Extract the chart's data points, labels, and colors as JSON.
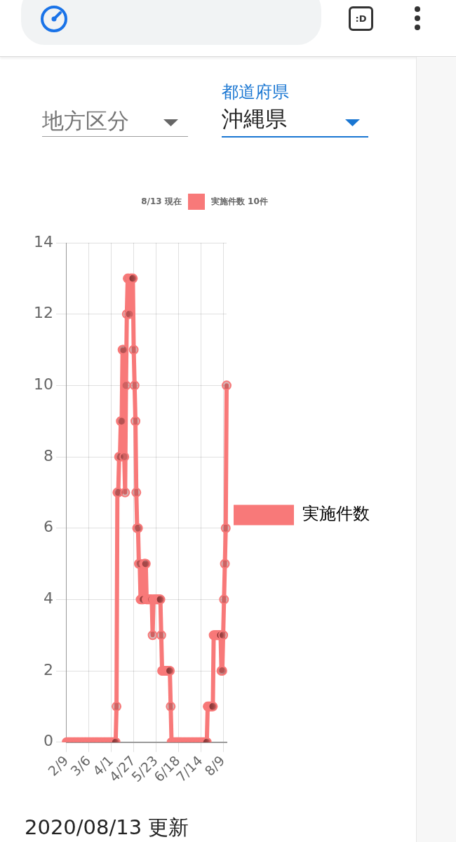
{
  "chart_data": {
    "type": "line",
    "title": "8/13 現在",
    "subtitle": "実施件数 10件",
    "categories": [
      "2/9",
      null,
      null,
      null,
      null,
      null,
      null,
      null,
      null,
      null,
      null,
      null,
      null,
      null,
      null,
      null,
      null,
      null,
      null,
      null,
      null,
      null,
      null,
      null,
      null,
      null,
      "3/6",
      null,
      null,
      null,
      null,
      null,
      null,
      null,
      null,
      null,
      null,
      null,
      null,
      null,
      null,
      null,
      null,
      null,
      null,
      null,
      null,
      null,
      null,
      null,
      null,
      null,
      "4/1",
      null,
      null,
      null,
      null,
      null,
      null,
      null,
      null,
      null,
      null,
      null,
      null,
      null,
      null,
      null,
      null,
      null,
      null,
      null,
      null,
      null,
      null,
      null,
      null,
      null,
      "4/27",
      null,
      null,
      null,
      null,
      null,
      null,
      null,
      null,
      null,
      null,
      null,
      null,
      null,
      null,
      null,
      null,
      null,
      null,
      null,
      null,
      null,
      null,
      null,
      null,
      null,
      "5/23",
      null,
      null,
      null,
      null,
      null,
      null,
      null,
      null,
      null,
      null,
      null,
      null,
      null,
      null,
      null,
      null,
      null,
      null,
      null,
      null,
      null,
      null,
      null,
      null,
      null,
      "6/18",
      null,
      null,
      null,
      null,
      null,
      null,
      null,
      null,
      null,
      null,
      null,
      null,
      null,
      null,
      null,
      null,
      null,
      null,
      null,
      null,
      null,
      null,
      null,
      null,
      null,
      "7/14",
      null,
      null,
      null,
      null,
      null,
      null,
      null,
      null,
      null,
      null,
      null,
      null,
      null,
      null,
      null,
      null,
      null,
      null,
      null,
      null,
      null,
      null,
      null,
      null,
      null,
      "8/9",
      null,
      null,
      null,
      null
    ],
    "series": [
      {
        "name": "実施件数",
        "color": "#f87979",
        "values": [
          0,
          0,
          0,
          0,
          0,
          0,
          0,
          0,
          0,
          0,
          0,
          0,
          0,
          0,
          0,
          0,
          0,
          0,
          0,
          0,
          0,
          0,
          0,
          0,
          0,
          0,
          0,
          0,
          0,
          0,
          0,
          0,
          0,
          0,
          0,
          0,
          0,
          0,
          0,
          0,
          0,
          0,
          0,
          0,
          0,
          0,
          0,
          0,
          0,
          0,
          0,
          0,
          0,
          0,
          0,
          0,
          0,
          0,
          1,
          7,
          7,
          8,
          8,
          9,
          9,
          11,
          11,
          8,
          7,
          10,
          12,
          13,
          13,
          12,
          13,
          13,
          13,
          13,
          11,
          10,
          9,
          7,
          6,
          6,
          5,
          5,
          4,
          4,
          4,
          4,
          5,
          5,
          5,
          4,
          4,
          4,
          4,
          4,
          4,
          4,
          3,
          4,
          4,
          4,
          4,
          4,
          4,
          4,
          4,
          4,
          3,
          2,
          2,
          2,
          2,
          2,
          2,
          2,
          2,
          2,
          2,
          1,
          0,
          0,
          0,
          0,
          0,
          0,
          0,
          0,
          0,
          0,
          0,
          0,
          0,
          0,
          0,
          0,
          0,
          0,
          0,
          0,
          0,
          0,
          0,
          0,
          0,
          0,
          0,
          0,
          0,
          0,
          0,
          0,
          0,
          0,
          0,
          0,
          0,
          0,
          0,
          0,
          0,
          0,
          1,
          1,
          1,
          1,
          1,
          1,
          1,
          3,
          3,
          3,
          3,
          3,
          3,
          3,
          3,
          3,
          2,
          2,
          3,
          4,
          5,
          6,
          10
        ]
      }
    ],
    "ylim": [
      0,
      14
    ],
    "yticks": [
      0,
      2,
      4,
      6,
      8,
      10,
      12,
      14
    ],
    "grid": true,
    "legend": "right",
    "marker": "circle",
    "line_style": "solid",
    "annotations": [
      ":D",
      "地方区分",
      "都道府県",
      "沖縄県",
      "2020/08/13 更新"
    ]
  }
}
